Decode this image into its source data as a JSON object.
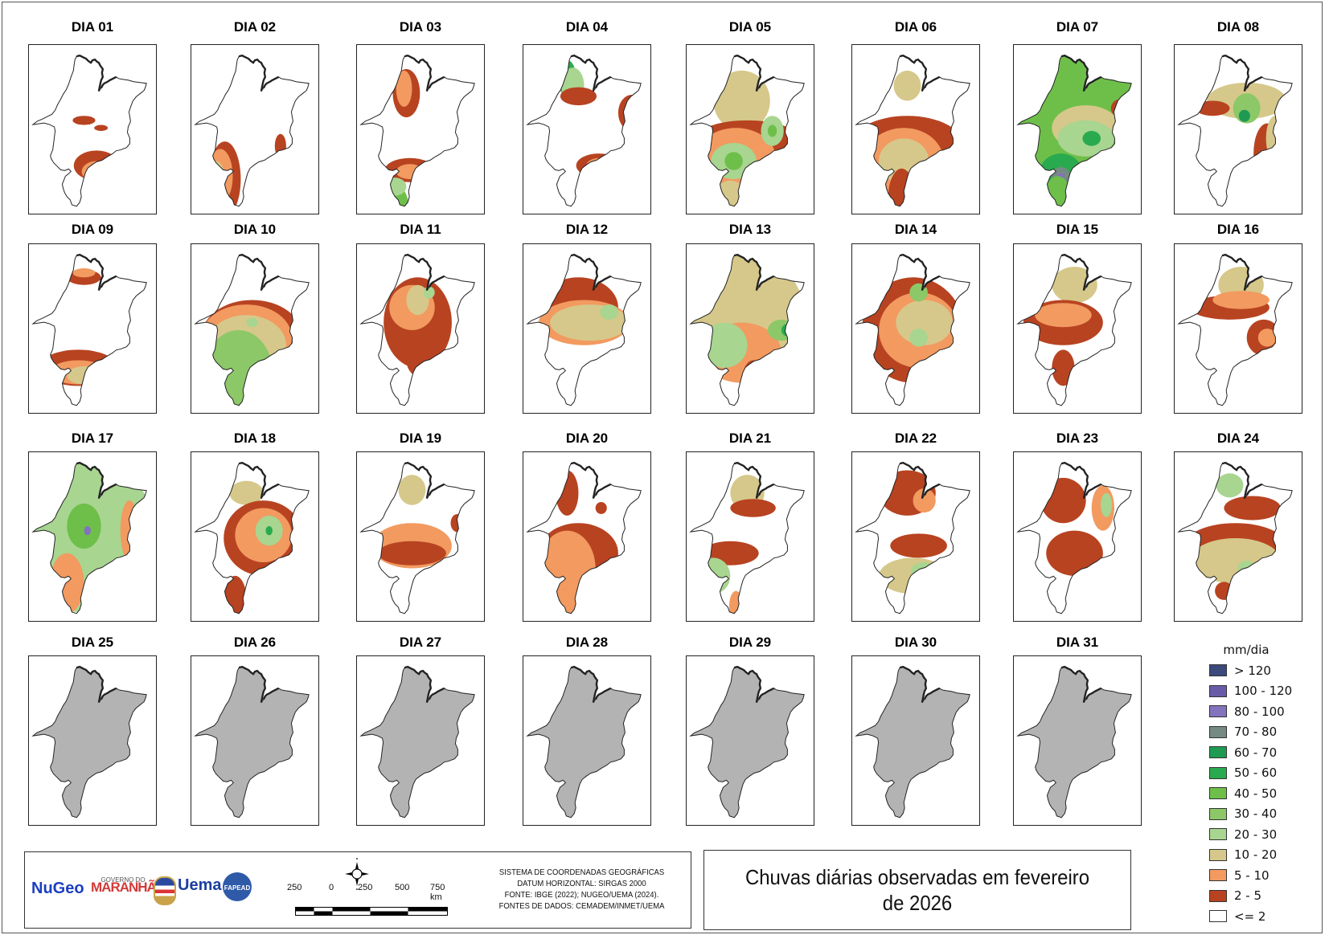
{
  "map_title": "Chuvas diárias observadas em fevereiro de 2026",
  "region": "Maranhão",
  "legend": {
    "title": "mm/dia",
    "classes": [
      {
        "label": "> 120",
        "color": "#3b4a7a"
      },
      {
        "label": "100 - 120",
        "color": "#6a5ba8"
      },
      {
        "label": "80 - 100",
        "color": "#8373bd"
      },
      {
        "label": "70 - 80",
        "color": "#768a84"
      },
      {
        "label": "60 - 70",
        "color": "#1f9a52"
      },
      {
        "label": "50 - 60",
        "color": "#2aaa4f"
      },
      {
        "label": "40 - 50",
        "color": "#6ebf4a"
      },
      {
        "label": "30 - 40",
        "color": "#8cc867"
      },
      {
        "label": "20 - 30",
        "color": "#a8d590"
      },
      {
        "label": "10 - 20",
        "color": "#d6c88a"
      },
      {
        "label": "5 - 10",
        "color": "#f29a60"
      },
      {
        "label": "2 - 5",
        "color": "#b84321"
      },
      {
        "label": "<= 2",
        "color": "#ffffff"
      }
    ]
  },
  "no_data_color": "#b3b3b3",
  "days": [
    {
      "label": "DIA 01",
      "zones": [
        [
          "2 - 5",
          0.45,
          0.43,
          0.1,
          0.03
        ],
        [
          "2 - 5",
          0.6,
          0.48,
          0.06,
          0.02
        ],
        [
          "2 - 5",
          0.56,
          0.73,
          0.2,
          0.1
        ],
        [
          "5 - 10",
          0.56,
          0.77,
          0.13,
          0.07
        ],
        [
          "10 - 20",
          0.55,
          0.79,
          0.05,
          0.03
        ]
      ]
    },
    {
      "label": "DIA 02",
      "zones": [
        [
          "2 - 5",
          0.26,
          0.82,
          0.14,
          0.25
        ],
        [
          "5 - 10",
          0.22,
          0.8,
          0.11,
          0.18
        ],
        [
          "10 - 20",
          0.18,
          0.78,
          0.07,
          0.08
        ],
        [
          "2 - 5",
          0.75,
          0.6,
          0.05,
          0.08
        ],
        [
          "2 - 5",
          0.75,
          0.78,
          0.04,
          0.03
        ]
      ]
    },
    {
      "label": "DIA 03",
      "zones": [
        [
          "2 - 5",
          0.4,
          0.25,
          0.12,
          0.16
        ],
        [
          "5 - 10",
          0.38,
          0.22,
          0.07,
          0.12
        ],
        [
          "2 - 5",
          0.43,
          0.76,
          0.22,
          0.08
        ],
        [
          "5 - 10",
          0.43,
          0.77,
          0.12,
          0.05
        ],
        [
          "40 - 50",
          0.3,
          1.0,
          0.12,
          0.14
        ],
        [
          "20 - 30",
          0.3,
          0.87,
          0.1,
          0.06
        ]
      ]
    },
    {
      "label": "DIA 04",
      "zones": [
        [
          "50 - 60",
          0.35,
          0.15,
          0.08,
          0.12
        ],
        [
          "20 - 30",
          0.4,
          0.2,
          0.1,
          0.12
        ],
        [
          "2 - 5",
          0.45,
          0.27,
          0.16,
          0.06
        ],
        [
          "2 - 5",
          0.92,
          0.38,
          0.12,
          0.12
        ],
        [
          "5 - 10",
          0.95,
          0.37,
          0.06,
          0.07
        ],
        [
          "2 - 5",
          0.63,
          0.73,
          0.2,
          0.08
        ],
        [
          "5 - 10",
          0.63,
          0.73,
          0.11,
          0.05
        ]
      ]
    },
    {
      "label": "DIA 05",
      "zones": [
        [
          "10 - 20",
          0.45,
          0.3,
          0.25,
          0.2
        ],
        [
          "2 - 5",
          0.5,
          0.55,
          0.45,
          0.12
        ],
        [
          "5 - 10",
          0.4,
          0.68,
          0.35,
          0.2
        ],
        [
          "20 - 30",
          0.38,
          0.7,
          0.2,
          0.12
        ],
        [
          "40 - 50",
          0.38,
          0.7,
          0.08,
          0.06
        ],
        [
          "20 - 30",
          0.72,
          0.5,
          0.1,
          0.1
        ],
        [
          "40 - 50",
          0.72,
          0.5,
          0.04,
          0.04
        ],
        [
          "10 - 20",
          0.35,
          0.95,
          0.15,
          0.12
        ]
      ]
    },
    {
      "label": "DIA 06",
      "zones": [
        [
          "10 - 20",
          0.45,
          0.2,
          0.12,
          0.1
        ],
        [
          "2 - 5",
          0.45,
          0.6,
          0.5,
          0.2
        ],
        [
          "5 - 10",
          0.42,
          0.7,
          0.35,
          0.22
        ],
        [
          "10 - 20",
          0.42,
          0.7,
          0.22,
          0.15
        ],
        [
          "2 - 5",
          0.4,
          0.95,
          0.12,
          0.2
        ]
      ]
    },
    {
      "label": "DIA 07",
      "zones": [
        [
          "40 - 50",
          0.5,
          0.4,
          0.6,
          0.5
        ],
        [
          "10 - 20",
          0.6,
          0.48,
          0.3,
          0.15
        ],
        [
          "20 - 30",
          0.6,
          0.55,
          0.25,
          0.12
        ],
        [
          "50 - 60",
          0.65,
          0.55,
          0.08,
          0.05
        ],
        [
          "2 - 5",
          0.9,
          0.35,
          0.08,
          0.06
        ],
        [
          "50 - 60",
          0.38,
          0.8,
          0.2,
          0.15
        ],
        [
          "70 - 80",
          0.38,
          0.8,
          0.08,
          0.06
        ],
        [
          "80 - 100",
          0.38,
          0.8,
          0.03,
          0.02
        ],
        [
          "40 - 50",
          0.35,
          0.95,
          0.12,
          0.15
        ]
      ]
    },
    {
      "label": "DIA 08",
      "zones": [
        [
          "10 - 20",
          0.6,
          0.3,
          0.35,
          0.12
        ],
        [
          "2 - 5",
          0.3,
          0.35,
          0.15,
          0.05
        ],
        [
          "30 - 40",
          0.6,
          0.35,
          0.12,
          0.1
        ],
        [
          "60 - 70",
          0.58,
          0.4,
          0.05,
          0.04
        ],
        [
          "2 - 5",
          0.78,
          0.65,
          0.12,
          0.2
        ],
        [
          "10 - 20",
          0.85,
          0.55,
          0.08,
          0.15
        ]
      ]
    },
    {
      "label": "DIA 09",
      "zones": [
        [
          "2 - 5",
          0.45,
          0.15,
          0.15,
          0.05
        ],
        [
          "5 - 10",
          0.45,
          0.12,
          0.1,
          0.03
        ],
        [
          "2 - 5",
          0.4,
          0.75,
          0.35,
          0.12
        ],
        [
          "5 - 10",
          0.4,
          0.78,
          0.25,
          0.08
        ],
        [
          "10 - 20",
          0.45,
          0.8,
          0.15,
          0.06
        ]
      ]
    },
    {
      "label": "DIA 10",
      "zones": [
        [
          "2 - 5",
          0.5,
          0.55,
          0.45,
          0.25
        ],
        [
          "5 - 10",
          0.45,
          0.55,
          0.4,
          0.22
        ],
        [
          "10 - 20",
          0.45,
          0.6,
          0.35,
          0.2
        ],
        [
          "30 - 40",
          0.38,
          0.78,
          0.3,
          0.28
        ],
        [
          "20 - 30",
          0.5,
          0.45,
          0.05,
          0.03
        ]
      ]
    },
    {
      "label": "DIA 11",
      "zones": [
        [
          "2 - 5",
          0.5,
          0.45,
          0.3,
          0.3
        ],
        [
          "5 - 10",
          0.45,
          0.35,
          0.2,
          0.15
        ],
        [
          "10 - 20",
          0.5,
          0.3,
          0.1,
          0.1
        ],
        [
          "2 - 5",
          0.55,
          0.7,
          0.15,
          0.12
        ],
        [
          "20 - 30",
          0.6,
          0.25,
          0.05,
          0.04
        ]
      ]
    },
    {
      "label": "DIA 12",
      "zones": [
        [
          "2 - 5",
          0.45,
          0.35,
          0.35,
          0.2
        ],
        [
          "5 - 10",
          0.5,
          0.45,
          0.4,
          0.15
        ],
        [
          "10 - 20",
          0.55,
          0.45,
          0.35,
          0.12
        ],
        [
          "20 - 30",
          0.72,
          0.38,
          0.08,
          0.05
        ]
      ]
    },
    {
      "label": "DIA 13",
      "zones": [
        [
          "10 - 20",
          0.5,
          0.4,
          0.5,
          0.4
        ],
        [
          "5 - 10",
          0.45,
          0.65,
          0.35,
          0.2
        ],
        [
          "20 - 30",
          0.3,
          0.6,
          0.2,
          0.15
        ],
        [
          "30 - 40",
          0.8,
          0.5,
          0.12,
          0.07
        ],
        [
          "50 - 60",
          0.85,
          0.5,
          0.05,
          0.04
        ],
        [
          "2 - 5",
          0.55,
          0.85,
          0.1,
          0.15
        ]
      ]
    },
    {
      "label": "DIA 14",
      "zones": [
        [
          "2 - 5",
          0.5,
          0.5,
          0.45,
          0.35
        ],
        [
          "5 - 10",
          0.55,
          0.5,
          0.35,
          0.25
        ],
        [
          "10 - 20",
          0.6,
          0.45,
          0.25,
          0.15
        ],
        [
          "30 - 40",
          0.55,
          0.25,
          0.08,
          0.06
        ],
        [
          "20 - 30",
          0.55,
          0.55,
          0.08,
          0.06
        ]
      ]
    },
    {
      "label": "DIA 15",
      "zones": [
        [
          "10 - 20",
          0.5,
          0.2,
          0.2,
          0.12
        ],
        [
          "2 - 5",
          0.4,
          0.45,
          0.35,
          0.15
        ],
        [
          "5 - 10",
          0.4,
          0.4,
          0.25,
          0.08
        ],
        [
          "2 - 5",
          0.4,
          0.75,
          0.1,
          0.12
        ]
      ]
    },
    {
      "label": "DIA 16",
      "zones": [
        [
          "10 - 20",
          0.55,
          0.2,
          0.2,
          0.12
        ],
        [
          "2 - 5",
          0.45,
          0.35,
          0.35,
          0.08
        ],
        [
          "5 - 10",
          0.55,
          0.3,
          0.25,
          0.06
        ],
        [
          "2 - 5",
          0.75,
          0.55,
          0.15,
          0.12
        ],
        [
          "5 - 10",
          0.78,
          0.55,
          0.08,
          0.06
        ]
      ]
    },
    {
      "label": "DIA 17",
      "zones": [
        [
          "20 - 30",
          0.5,
          0.5,
          0.6,
          0.5
        ],
        [
          "40 - 50",
          0.45,
          0.42,
          0.15,
          0.15
        ],
        [
          "80 - 100",
          0.48,
          0.45,
          0.03,
          0.03
        ],
        [
          "5 - 10",
          0.3,
          0.8,
          0.15,
          0.2
        ],
        [
          "5 - 10",
          0.85,
          0.45,
          0.08,
          0.2
        ]
      ]
    },
    {
      "label": "DIA 18",
      "zones": [
        [
          "10 - 20",
          0.45,
          0.2,
          0.15,
          0.08
        ],
        [
          "2 - 5",
          0.6,
          0.5,
          0.35,
          0.25
        ],
        [
          "5 - 10",
          0.6,
          0.48,
          0.25,
          0.18
        ],
        [
          "20 - 30",
          0.65,
          0.45,
          0.12,
          0.1
        ],
        [
          "50 - 60",
          0.65,
          0.45,
          0.03,
          0.03
        ],
        [
          "2 - 5",
          0.35,
          0.9,
          0.1,
          0.15
        ]
      ]
    },
    {
      "label": "DIA 19",
      "zones": [
        [
          "10 - 20",
          0.45,
          0.18,
          0.12,
          0.1
        ],
        [
          "5 - 10",
          0.45,
          0.55,
          0.35,
          0.15
        ],
        [
          "2 - 5",
          0.45,
          0.6,
          0.3,
          0.08
        ],
        [
          "2 - 5",
          0.85,
          0.4,
          0.06,
          0.06
        ]
      ]
    },
    {
      "label": "DIA 20",
      "zones": [
        [
          "2 - 5",
          0.35,
          0.2,
          0.1,
          0.15
        ],
        [
          "2 - 5",
          0.45,
          0.6,
          0.35,
          0.2
        ],
        [
          "5 - 10",
          0.35,
          0.7,
          0.25,
          0.25
        ],
        [
          "5 - 10",
          0.4,
          0.95,
          0.1,
          0.15
        ],
        [
          "2 - 5",
          0.65,
          0.3,
          0.05,
          0.04
        ]
      ]
    },
    {
      "label": "DIA 21",
      "zones": [
        [
          "10 - 20",
          0.5,
          0.2,
          0.15,
          0.12
        ],
        [
          "2 - 5",
          0.55,
          0.3,
          0.2,
          0.06
        ],
        [
          "2 - 5",
          0.35,
          0.6,
          0.25,
          0.08
        ],
        [
          "20 - 30",
          0.2,
          0.75,
          0.15,
          0.12
        ],
        [
          "40 - 50",
          0.15,
          0.8,
          0.05,
          0.05
        ],
        [
          "5 - 10",
          0.4,
          0.95,
          0.06,
          0.1
        ]
      ]
    },
    {
      "label": "DIA 22",
      "zones": [
        [
          "2 - 5",
          0.45,
          0.2,
          0.25,
          0.15
        ],
        [
          "5 - 10",
          0.6,
          0.25,
          0.1,
          0.08
        ],
        [
          "2 - 5",
          0.55,
          0.55,
          0.25,
          0.08
        ],
        [
          "10 - 20",
          0.5,
          0.75,
          0.3,
          0.12
        ],
        [
          "20 - 30",
          0.6,
          0.72,
          0.12,
          0.06
        ]
      ]
    },
    {
      "label": "DIA 23",
      "zones": [
        [
          "2 - 5",
          0.4,
          0.25,
          0.2,
          0.15
        ],
        [
          "2 - 5",
          0.5,
          0.6,
          0.25,
          0.15
        ],
        [
          "5 - 10",
          0.75,
          0.3,
          0.1,
          0.15
        ],
        [
          "20 - 30",
          0.78,
          0.28,
          0.05,
          0.08
        ]
      ]
    },
    {
      "label": "DIA 24",
      "zones": [
        [
          "20 - 30",
          0.45,
          0.15,
          0.12,
          0.08
        ],
        [
          "2 - 5",
          0.65,
          0.3,
          0.25,
          0.08
        ],
        [
          "2 - 5",
          0.5,
          0.55,
          0.45,
          0.15
        ],
        [
          "10 - 20",
          0.5,
          0.65,
          0.4,
          0.15
        ],
        [
          "20 - 30",
          0.6,
          0.7,
          0.08,
          0.05
        ],
        [
          "2 - 5",
          0.4,
          0.85,
          0.08,
          0.06
        ]
      ]
    },
    {
      "label": "DIA 25",
      "zones": null
    },
    {
      "label": "DIA 26",
      "zones": null
    },
    {
      "label": "DIA 27",
      "zones": null
    },
    {
      "label": "DIA 28",
      "zones": null
    },
    {
      "label": "DIA 29",
      "zones": null
    },
    {
      "label": "DIA 30",
      "zones": null
    },
    {
      "label": "DIA 31",
      "zones": null
    }
  ],
  "info": {
    "crs_lines": [
      "SISTEMA DE COORDENADAS GEOGRÁFICAS",
      "DATUM HORIZONTAL: SIRGAS 2000",
      "FONTE: IBGE (2022); NUGEO/UEMA (2024).",
      "FONTES DE DADOS: CEMADEM/INMET/UEMA"
    ],
    "scale_labels": [
      "250",
      "0",
      "250",
      "500",
      "750 km"
    ],
    "logos": [
      "NuGeo",
      "Governo do MARANHÃO",
      "Brasão",
      "Uema",
      "FAPEAD"
    ]
  }
}
